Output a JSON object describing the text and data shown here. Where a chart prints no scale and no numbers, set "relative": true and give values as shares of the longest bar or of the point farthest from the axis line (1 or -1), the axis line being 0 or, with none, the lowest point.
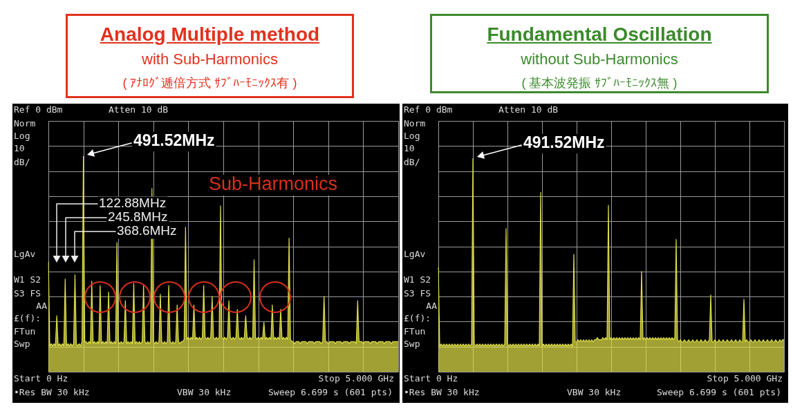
{
  "chart_data": [
    {
      "type": "area",
      "title": "Analog Multiple method",
      "subtitle": "with Sub-Harmonics\n( ｱﾅﾛｸﾞ逓倍方式 ｻﾌﾞﾊｰﾓﾆｯｸｽ有 )",
      "relative": true,
      "categories": [
        null,
        null,
        null,
        null,
        null,
        null,
        null,
        null,
        null,
        null,
        null,
        null,
        null,
        null,
        null,
        null,
        null,
        null,
        null,
        null,
        null,
        null,
        null,
        null,
        null,
        null,
        null,
        null,
        null,
        null,
        null,
        null,
        null,
        null,
        null,
        null,
        null,
        null,
        null,
        null,
        null,
        null,
        null,
        null,
        null,
        null,
        null,
        null,
        null,
        null,
        null,
        null,
        null,
        null,
        null,
        null,
        null,
        null,
        null,
        null,
        null,
        null,
        null,
        null,
        null,
        null,
        null,
        null,
        null,
        null,
        null,
        null,
        null,
        null,
        null,
        null,
        null,
        null,
        null,
        null,
        null,
        null,
        null,
        null,
        null,
        null,
        null,
        null,
        null,
        null,
        null,
        null,
        null,
        null,
        null,
        null,
        null,
        null,
        null,
        null,
        null,
        null,
        null,
        null,
        null,
        null,
        null,
        null,
        null,
        null,
        null,
        null,
        null,
        null,
        null,
        null,
        null,
        null,
        null,
        null,
        null,
        null,
        null,
        null,
        null,
        null,
        null,
        null,
        null,
        null,
        null,
        null,
        null,
        null,
        null,
        null,
        null,
        null,
        null,
        null,
        null,
        null,
        null,
        null,
        null,
        null,
        null,
        null,
        null,
        null,
        null,
        null,
        null,
        null,
        null,
        null,
        null,
        null,
        null,
        null,
        null,
        null,
        null,
        null,
        null,
        null,
        null,
        null,
        null,
        null,
        null,
        null,
        null,
        null,
        null,
        null,
        null,
        null,
        null,
        null,
        null,
        null,
        null,
        null,
        null,
        null,
        null,
        null,
        null,
        null,
        null,
        null,
        null,
        null,
        null,
        null,
        null,
        null,
        null,
        null,
        null,
        null,
        null,
        null,
        null,
        null,
        null,
        null,
        null,
        null,
        null,
        null,
        null,
        null,
        null,
        null,
        null,
        null,
        null,
        null,
        null,
        null,
        null,
        null,
        null,
        null,
        null,
        null,
        null,
        null,
        null,
        null,
        null,
        null,
        null,
        null,
        null,
        null,
        null,
        null,
        null,
        null,
        null,
        null,
        null,
        null,
        null,
        null,
        null,
        null,
        null
      ],
      "values": [
        0.51,
        0.12,
        0.13,
        0.12,
        0.13,
        0.12,
        0.26,
        0.12,
        0.13,
        0.12,
        0.13,
        0.12,
        0.43,
        0.12,
        0.13,
        0.12,
        0.13,
        0.12,
        0.13,
        0.45,
        0.13,
        0.12,
        0.13,
        0.12,
        0.14,
        1,
        0.14,
        0.14,
        0.13,
        0.14,
        0.13,
        0.42,
        0.13,
        0.14,
        0.13,
        0.14,
        0.13,
        0.4,
        0.13,
        0.14,
        0.13,
        0.14,
        0.13,
        0.37,
        0.13,
        0.14,
        0.13,
        0.14,
        0.13,
        0.6,
        0.14,
        0.13,
        0.14,
        0.13,
        0.14,
        0.33,
        0.13,
        0.14,
        0.13,
        0.14,
        0.13,
        0.41,
        0.13,
        0.14,
        0.13,
        0.14,
        0.13,
        0.14,
        0.4,
        0.14,
        0.13,
        0.14,
        0.13,
        0.14,
        0.85,
        0.14,
        0.13,
        0.14,
        0.13,
        0.14,
        0.36,
        0.14,
        0.13,
        0.14,
        0.13,
        0.14,
        0.4,
        0.14,
        0.13,
        0.14,
        0.13,
        0.14,
        0.31,
        0.14,
        0.13,
        0.14,
        0.14,
        0.15,
        0.67,
        0.15,
        0.16,
        0.15,
        0.16,
        0.15,
        0.31,
        0.15,
        0.16,
        0.15,
        0.16,
        0.15,
        0.16,
        0.4,
        0.16,
        0.15,
        0.16,
        0.15,
        0.16,
        0.35,
        0.16,
        0.15,
        0.16,
        0.15,
        0.16,
        0.77,
        0.16,
        0.15,
        0.16,
        0.15,
        0.16,
        0.33,
        0.16,
        0.15,
        0.16,
        0.15,
        0.16,
        0.29,
        0.16,
        0.15,
        0.16,
        0.15,
        0.16,
        0.26,
        0.16,
        0.15,
        0.16,
        0.15,
        0.16,
        0.52,
        0.16,
        0.15,
        0.16,
        0.15,
        0.16,
        0.15,
        0.23,
        0.15,
        0.16,
        0.15,
        0.16,
        0.15,
        0.31,
        0.15,
        0.16,
        0.15,
        0.16,
        0.15,
        0.29,
        0.15,
        0.16,
        0.15,
        0.16,
        0.15,
        0.62,
        0.15,
        0.14,
        0.14,
        0.13,
        0.14,
        0.14,
        0.14,
        0.13,
        0.14,
        0.14,
        0.14,
        0.14,
        0.13,
        0.14,
        0.14,
        0.14,
        0.14,
        0.13,
        0.14,
        0.14,
        0.14,
        0.14,
        0.13,
        0.14,
        0.35,
        0.14,
        0.14,
        0.13,
        0.14,
        0.14,
        0.14,
        0.14,
        0.13,
        0.14,
        0.14,
        0.14,
        0.14,
        0.13,
        0.14,
        0.14,
        0.14,
        0.14,
        0.13,
        0.14,
        0.14,
        0.14,
        0.14,
        0.13,
        0.33,
        0.14,
        0.14,
        0.14,
        0.13,
        0.14,
        0.14,
        0.14,
        0.14,
        0.13,
        0.14,
        0.14,
        0.14,
        0.14,
        0.13,
        0.14,
        0.14,
        0.14,
        0.14,
        0.13,
        0.14,
        0.14,
        0.14,
        0.14,
        0.13,
        0.14,
        0.14,
        0.14,
        0.14,
        0.14
      ],
      "color": "#dede48",
      "tick_labels": false,
      "grid": true,
      "annotations": [
        "Ref 0 dBm",
        "Atten 10 dB",
        "Norm",
        "Log",
        "10",
        "dB/",
        "LgAv",
        "W1 S2",
        "S3 FS",
        "AA",
        "£(f):",
        "FTun",
        "Swp",
        "Start 0 Hz",
        "Stop 5.000 GHz",
        "•Res BW 30 kHz",
        "VBW 30 kHz",
        "Sweep 6.699 s (601 pts)",
        "491.52MHz",
        "Sub-Harmonics",
        "122.88MHz",
        "245.8MHz",
        "368.6MHz"
      ]
    },
    {
      "type": "area",
      "title": "Fundamental Oscillation",
      "subtitle": "without Sub-Harmonics\n( 基本波発振 ｻﾌﾞﾊｰﾓﾆｯｸｽ無 )",
      "relative": true,
      "categories": [
        null,
        null,
        null,
        null,
        null,
        null,
        null,
        null,
        null,
        null,
        null,
        null,
        null,
        null,
        null,
        null,
        null,
        null,
        null,
        null,
        null,
        null,
        null,
        null,
        null,
        null,
        null,
        null,
        null,
        null,
        null,
        null,
        null,
        null,
        null,
        null,
        null,
        null,
        null,
        null,
        null,
        null,
        null,
        null,
        null,
        null,
        null,
        null,
        null,
        null,
        null,
        null,
        null,
        null,
        null,
        null,
        null,
        null,
        null,
        null,
        null,
        null,
        null,
        null,
        null,
        null,
        null,
        null,
        null,
        null,
        null,
        null,
        null,
        null,
        null,
        null,
        null,
        null,
        null,
        null,
        null,
        null,
        null,
        null,
        null,
        null,
        null,
        null,
        null,
        null,
        null,
        null,
        null,
        null,
        null,
        null,
        null,
        null,
        null,
        null,
        null,
        null,
        null,
        null,
        null,
        null,
        null,
        null,
        null,
        null,
        null,
        null,
        null,
        null,
        null,
        null,
        null,
        null,
        null,
        null,
        null,
        null,
        null,
        null,
        null,
        null,
        null,
        null,
        null,
        null,
        null,
        null,
        null,
        null,
        null,
        null,
        null,
        null,
        null,
        null,
        null,
        null,
        null,
        null,
        null,
        null,
        null,
        null,
        null,
        null,
        null,
        null,
        null,
        null,
        null,
        null,
        null,
        null,
        null,
        null,
        null,
        null,
        null,
        null,
        null,
        null,
        null,
        null,
        null,
        null,
        null,
        null,
        null,
        null,
        null,
        null,
        null,
        null,
        null,
        null,
        null,
        null,
        null,
        null,
        null,
        null,
        null,
        null,
        null,
        null,
        null,
        null,
        null,
        null,
        null,
        null,
        null,
        null,
        null,
        null,
        null,
        null,
        null,
        null,
        null,
        null,
        null,
        null,
        null,
        null,
        null,
        null,
        null,
        null,
        null,
        null,
        null,
        null,
        null,
        null,
        null,
        null,
        null,
        null,
        null,
        null,
        null,
        null,
        null,
        null,
        null,
        null,
        null,
        null,
        null,
        null,
        null,
        null,
        null,
        null,
        null,
        null,
        null,
        null,
        null,
        null,
        null,
        null,
        null,
        null,
        null
      ],
      "values": [
        0.49,
        0.12,
        0.13,
        0.12,
        0.13,
        0.12,
        0.13,
        0.12,
        0.13,
        0.12,
        0.13,
        0.12,
        0.13,
        0.12,
        0.13,
        0.12,
        0.13,
        0.12,
        0.13,
        0.12,
        0.13,
        0.12,
        0.13,
        0.12,
        0.13,
        1,
        0.13,
        0.12,
        0.13,
        0.12,
        0.13,
        0.12,
        0.13,
        0.12,
        0.13,
        0.12,
        0.13,
        0.12,
        0.13,
        0.12,
        0.13,
        0.12,
        0.13,
        0.12,
        0.13,
        0.12,
        0.13,
        0.12,
        0.13,
        0.67,
        0.13,
        0.12,
        0.13,
        0.12,
        0.13,
        0.12,
        0.13,
        0.12,
        0.13,
        0.12,
        0.13,
        0.12,
        0.13,
        0.12,
        0.13,
        0.12,
        0.13,
        0.12,
        0.13,
        0.12,
        0.13,
        0.12,
        0.13,
        0.12,
        0.84,
        0.12,
        0.13,
        0.12,
        0.13,
        0.12,
        0.13,
        0.12,
        0.13,
        0.12,
        0.13,
        0.12,
        0.13,
        0.12,
        0.13,
        0.12,
        0.13,
        0.12,
        0.13,
        0.12,
        0.13,
        0.12,
        0.13,
        0.12,
        0.55,
        0.14,
        0.14,
        0.15,
        0.14,
        0.15,
        0.14,
        0.15,
        0.14,
        0.15,
        0.14,
        0.15,
        0.14,
        0.15,
        0.14,
        0.15,
        0.15,
        0.16,
        0.15,
        0.15,
        0.15,
        0.16,
        0.15,
        0.16,
        0.15,
        0.78,
        0.15,
        0.16,
        0.15,
        0.16,
        0.15,
        0.16,
        0.15,
        0.16,
        0.15,
        0.16,
        0.15,
        0.16,
        0.15,
        0.16,
        0.15,
        0.16,
        0.15,
        0.16,
        0.15,
        0.16,
        0.15,
        0.16,
        0.15,
        0.47,
        0.15,
        0.16,
        0.15,
        0.16,
        0.15,
        0.16,
        0.15,
        0.16,
        0.15,
        0.16,
        0.15,
        0.16,
        0.15,
        0.16,
        0.15,
        0.16,
        0.15,
        0.16,
        0.15,
        0.16,
        0.15,
        0.16,
        0.15,
        0.16,
        0.62,
        0.15,
        0.14,
        0.15,
        0.14,
        0.14,
        0.15,
        0.14,
        0.14,
        0.15,
        0.14,
        0.14,
        0.15,
        0.14,
        0.14,
        0.15,
        0.14,
        0.14,
        0.15,
        0.14,
        0.14,
        0.15,
        0.14,
        0.14,
        0.15,
        0.36,
        0.14,
        0.14,
        0.15,
        0.14,
        0.14,
        0.15,
        0.14,
        0.14,
        0.15,
        0.14,
        0.14,
        0.15,
        0.14,
        0.14,
        0.15,
        0.14,
        0.14,
        0.15,
        0.14,
        0.14,
        0.15,
        0.14,
        0.14,
        0.34,
        0.14,
        0.15,
        0.14,
        0.14,
        0.15,
        0.14,
        0.14,
        0.15,
        0.14,
        0.14,
        0.15,
        0.14,
        0.14,
        0.15,
        0.14,
        0.14,
        0.15,
        0.14,
        0.14,
        0.15,
        0.14,
        0.14,
        0.15,
        0.14,
        0.14,
        0.15,
        0.14,
        0.15,
        0.15
      ],
      "color": "#dede48",
      "tick_labels": false,
      "grid": true,
      "annotations": [
        "Ref 0 dBm",
        "Atten 10 dB",
        "Norm",
        "Log",
        "10",
        "dB/",
        "LgAv",
        "W1 S2",
        "S3 FS",
        "AA",
        "£(f):",
        "FTun",
        "Swp",
        "Start 0 Hz",
        "Stop 5.000 GHz",
        "•Res BW 30 kHz",
        "VBW 30 kHz",
        "Sweep 6.699 s (601 pts)",
        "491.52MHz"
      ]
    }
  ]
}
